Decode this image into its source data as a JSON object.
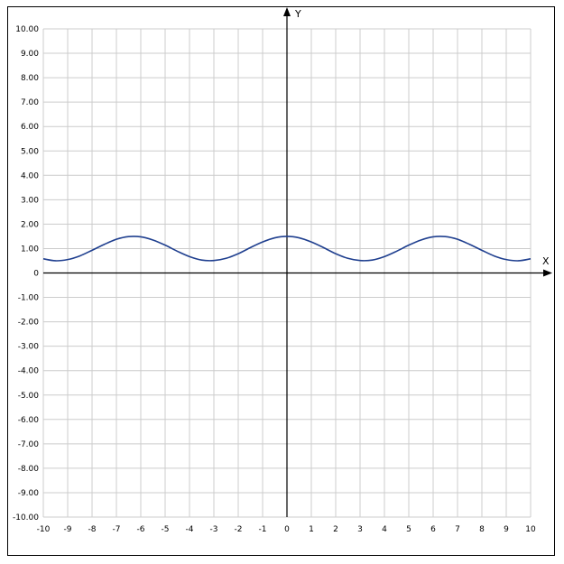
{
  "chart_data": {
    "type": "line",
    "title": "",
    "xlabel": "X",
    "ylabel": "Y",
    "xlim": [
      -10,
      10
    ],
    "ylim": [
      -10,
      10
    ],
    "grid": true,
    "x_ticks": [
      "-10",
      "-9",
      "-8",
      "-7",
      "-6",
      "-5",
      "-4",
      "-3",
      "-2",
      "-1",
      "0",
      "1",
      "2",
      "3",
      "4",
      "5",
      "6",
      "7",
      "8",
      "9",
      "10"
    ],
    "y_ticks": [
      "10.00",
      "9.00",
      "8.00",
      "7.00",
      "6.00",
      "5.00",
      "4.00",
      "3.00",
      "2.00",
      "1.00",
      "0",
      "-1.00",
      "-2.00",
      "-3.00",
      "-4.00",
      "-5.00",
      "-6.00",
      "-7.00",
      "-8.00",
      "-9.00",
      "-10.00"
    ],
    "series": [
      {
        "color": "#1f3f8f",
        "x": [
          -10,
          -9.5,
          -9,
          -8.5,
          -8,
          -7.5,
          -7,
          -6.5,
          -6,
          -5.5,
          -5,
          -4.5,
          -4,
          -3.5,
          -3,
          -2.5,
          -2,
          -1.5,
          -1,
          -0.5,
          0,
          0.5,
          1,
          1.5,
          2,
          2.5,
          3,
          3.5,
          4,
          4.5,
          5,
          5.5,
          6,
          6.5,
          7,
          7.5,
          8,
          8.5,
          9,
          9.5,
          10
        ],
        "y": [
          0.58,
          0.5,
          0.55,
          0.7,
          0.93,
          1.17,
          1.38,
          1.49,
          1.48,
          1.35,
          1.14,
          0.89,
          0.67,
          0.53,
          0.51,
          0.6,
          0.79,
          1.04,
          1.27,
          1.44,
          1.5,
          1.44,
          1.27,
          1.04,
          0.79,
          0.6,
          0.51,
          0.53,
          0.67,
          0.89,
          1.14,
          1.35,
          1.48,
          1.49,
          1.38,
          1.17,
          0.93,
          0.7,
          0.55,
          0.5,
          0.58
        ]
      }
    ]
  }
}
